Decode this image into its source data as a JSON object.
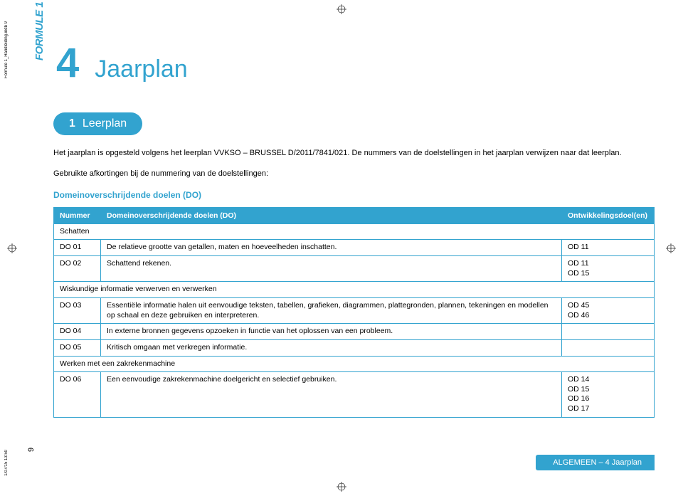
{
  "meta": {
    "side_file": "Formule 1_Handleiding.indb   9",
    "side_date": "1/07/15   13:50",
    "page_number": "9"
  },
  "colors": {
    "brand": "#32a3cf",
    "text": "#000000",
    "bg": "#ffffff"
  },
  "logo_text": "FORMULE 1",
  "header": {
    "chapter_number": "4",
    "chapter_title": "Jaarplan"
  },
  "section_pill": {
    "number": "1",
    "label": "Leerplan"
  },
  "intro": {
    "p1": "Het jaarplan is opgesteld volgens het leerplan VVKSO – BRUSSEL D/2011/7841/021. De nummers van de doelstellingen in het jaarplan verwijzen naar dat leerplan.",
    "p2": "Gebruikte afkortingen bij de nummering van de doelstellingen:"
  },
  "subheading": "Domeinoverschrijdende doelen (DO)",
  "table": {
    "headers": {
      "nummer": "Nummer",
      "doelen": "Domeinoverschrijdende doelen (DO)",
      "ontwikkel": "Ontwikkelingsdoel(en)"
    },
    "rows": [
      {
        "type": "section",
        "label": "Schatten"
      },
      {
        "num": "DO 01",
        "desc": "De relatieve grootte van getallen, maten en hoeveelheden inschatten.",
        "od": "OD 11"
      },
      {
        "num": "DO 02",
        "desc": "Schattend rekenen.",
        "od": "OD 11\nOD 15"
      },
      {
        "type": "section",
        "label": "Wiskundige informatie verwerven en verwerken"
      },
      {
        "num": "DO 03",
        "desc": "Essentiële informatie halen uit eenvoudige teksten, tabellen, grafieken, diagrammen, plattegronden, plannen, tekeningen en modellen op schaal en deze gebruiken en interpreteren.",
        "od": "OD 45\nOD 46"
      },
      {
        "num": "DO 04",
        "desc": "In externe bronnen gegevens opzoeken in functie van het oplossen van een probleem.",
        "od": ""
      },
      {
        "num": "DO 05",
        "desc": "Kritisch omgaan met verkregen informatie.",
        "od": ""
      },
      {
        "type": "section",
        "label": "Werken met een zakrekenmachine"
      },
      {
        "num": "DO 06",
        "desc": "Een eenvoudige zakrekenmachine doelgericht en selectief gebruiken.",
        "od": "OD 14\nOD 15\nOD 16\nOD 17"
      }
    ]
  },
  "footer": "ALGEMEEN – 4  Jaarplan"
}
